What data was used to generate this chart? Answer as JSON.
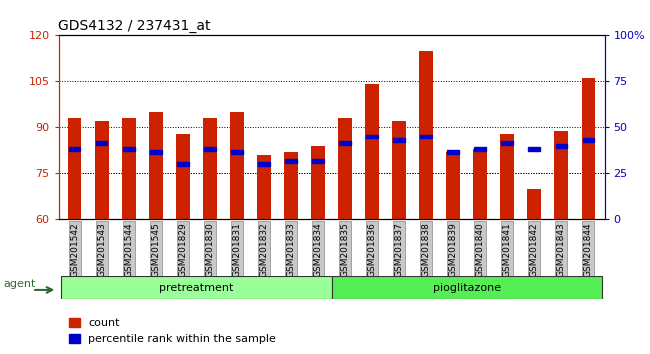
{
  "title": "GDS4132 / 237431_at",
  "samples": [
    "GSM201542",
    "GSM201543",
    "GSM201544",
    "GSM201545",
    "GSM201829",
    "GSM201830",
    "GSM201831",
    "GSM201832",
    "GSM201833",
    "GSM201834",
    "GSM201835",
    "GSM201836",
    "GSM201837",
    "GSM201838",
    "GSM201839",
    "GSM201840",
    "GSM201841",
    "GSM201842",
    "GSM201843",
    "GSM201844"
  ],
  "count_values": [
    93,
    92,
    93,
    95,
    88,
    93,
    95,
    81,
    82,
    84,
    93,
    104,
    92,
    115,
    82,
    83,
    88,
    70,
    89,
    106
  ],
  "percentile_values": [
    83,
    85,
    83,
    82,
    78,
    83,
    82,
    78,
    79,
    79,
    85,
    87,
    86,
    87,
    82,
    83,
    85,
    83,
    84,
    86
  ],
  "pretreatment_count": 10,
  "pioglitazone_count": 10,
  "ylim_left": [
    60,
    120
  ],
  "ylim_right": [
    0,
    100
  ],
  "yticks_left": [
    60,
    75,
    90,
    105,
    120
  ],
  "yticks_right": [
    0,
    25,
    50,
    75,
    100
  ],
  "grid_values": [
    75,
    90,
    105
  ],
  "bar_color": "#CC2200",
  "percentile_color": "#0000CC",
  "pretreatment_color": "#99FF99",
  "pioglitazone_color": "#55EE55",
  "agent_label_color": "#336633",
  "title_fontsize": 10,
  "axis_label_color_left": "#CC2200",
  "axis_label_color_right": "#0000CC",
  "bar_width": 0.5,
  "legend_count_label": "count",
  "legend_percentile_label": "percentile rank within the sample",
  "right_ytick_labels": [
    "0",
    "25",
    "50",
    "75",
    "100%"
  ],
  "ticklabel_bg": "#C8C8C8"
}
